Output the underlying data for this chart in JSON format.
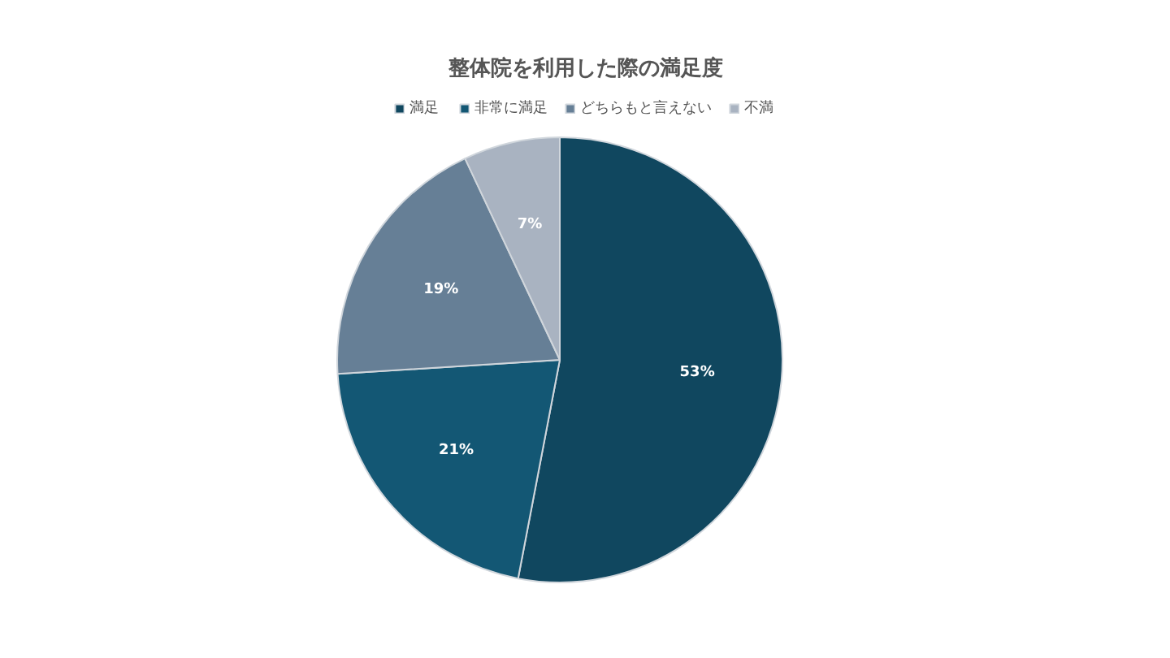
{
  "chart_data": {
    "type": "pie",
    "title": "整体院を利用した際の満足度",
    "categories": [
      "満足",
      "非常に満足",
      "どちらもと言えない",
      "不満"
    ],
    "values": [
      53,
      21,
      19,
      7
    ],
    "colors": [
      "#10475f",
      "#135774",
      "#667f96",
      "#a9b3c1"
    ],
    "value_labels": [
      "53%",
      "21%",
      "19%",
      "7%"
    ],
    "legend": "top"
  }
}
